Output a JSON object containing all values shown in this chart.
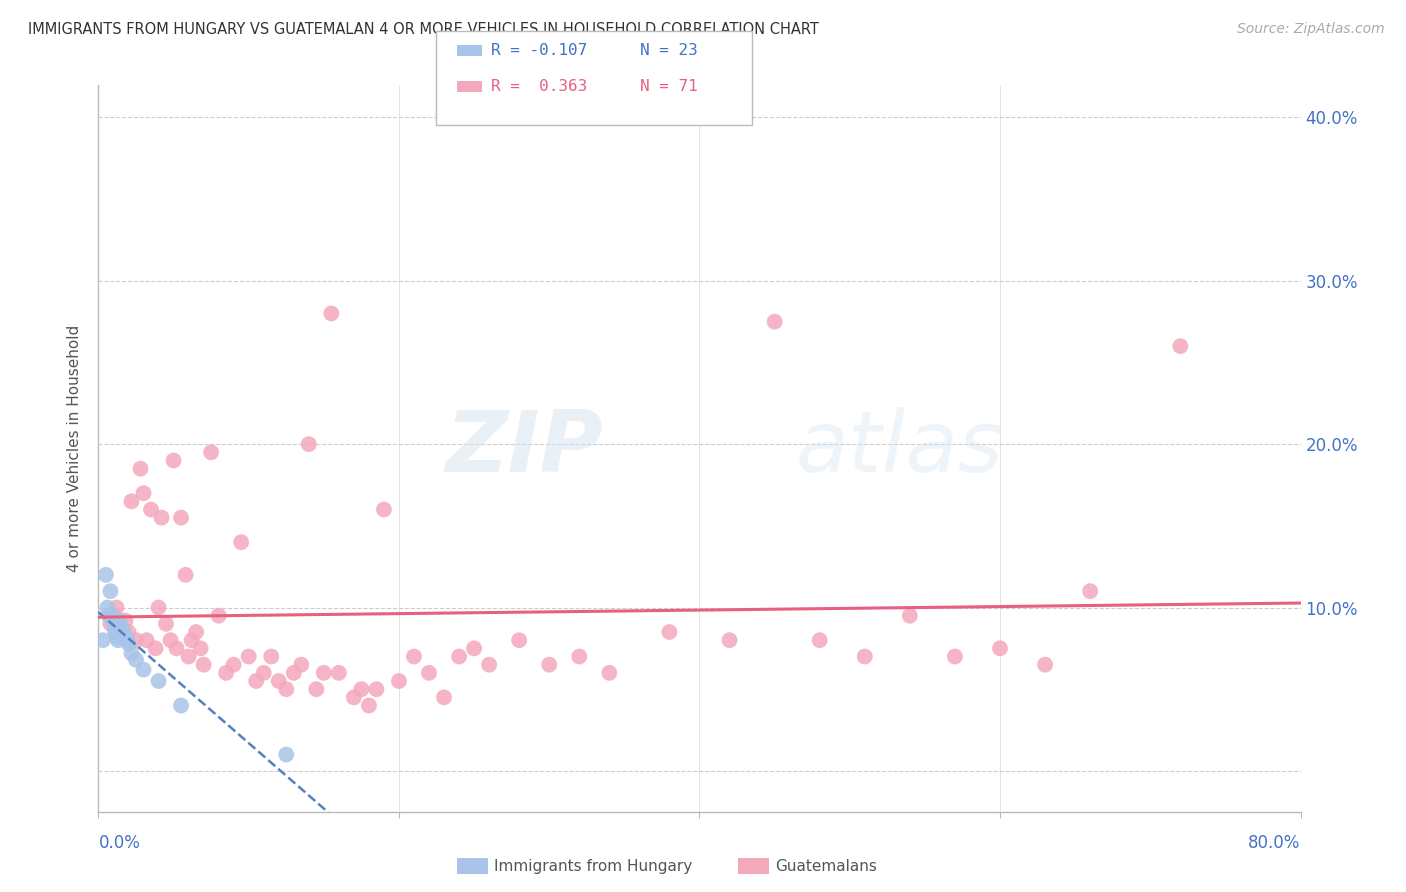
{
  "title": "IMMIGRANTS FROM HUNGARY VS GUATEMALAN 4 OR MORE VEHICLES IN HOUSEHOLD CORRELATION CHART",
  "source": "Source: ZipAtlas.com",
  "ylabel": "4 or more Vehicles in Household",
  "blue_color": "#a8c4e8",
  "pink_color": "#f4a8bc",
  "blue_line_color": "#5580c0",
  "pink_line_color": "#e86080",
  "watermark_zip": "ZIP",
  "watermark_atlas": "atlas",
  "xlim": [
    0.0,
    0.8
  ],
  "ylim": [
    -0.025,
    0.42
  ],
  "yticks": [
    0.0,
    0.1,
    0.2,
    0.3,
    0.4
  ],
  "xtick_positions": [
    0.0,
    0.2,
    0.4,
    0.6,
    0.8
  ],
  "legend_r1": "R = -0.107",
  "legend_n1": "N = 23",
  "legend_r2": "R =  0.363",
  "legend_n2": "N = 71",
  "blue_scatter_x": [
    0.003,
    0.005,
    0.006,
    0.007,
    0.008,
    0.009,
    0.01,
    0.011,
    0.012,
    0.013,
    0.014,
    0.015,
    0.016,
    0.017,
    0.018,
    0.019,
    0.02,
    0.022,
    0.025,
    0.03,
    0.04,
    0.055,
    0.125
  ],
  "blue_scatter_y": [
    0.08,
    0.12,
    0.1,
    0.095,
    0.11,
    0.095,
    0.09,
    0.085,
    0.082,
    0.08,
    0.092,
    0.088,
    0.086,
    0.084,
    0.082,
    0.08,
    0.078,
    0.072,
    0.068,
    0.062,
    0.055,
    0.04,
    0.01
  ],
  "pink_scatter_x": [
    0.008,
    0.01,
    0.012,
    0.015,
    0.018,
    0.02,
    0.022,
    0.025,
    0.028,
    0.03,
    0.032,
    0.035,
    0.038,
    0.04,
    0.042,
    0.045,
    0.048,
    0.05,
    0.052,
    0.055,
    0.058,
    0.06,
    0.062,
    0.065,
    0.068,
    0.07,
    0.075,
    0.08,
    0.085,
    0.09,
    0.095,
    0.1,
    0.105,
    0.11,
    0.115,
    0.12,
    0.125,
    0.13,
    0.135,
    0.14,
    0.145,
    0.15,
    0.155,
    0.16,
    0.17,
    0.175,
    0.18,
    0.185,
    0.19,
    0.2,
    0.21,
    0.22,
    0.23,
    0.24,
    0.25,
    0.26,
    0.28,
    0.3,
    0.32,
    0.34,
    0.38,
    0.42,
    0.45,
    0.48,
    0.51,
    0.54,
    0.57,
    0.6,
    0.63,
    0.66,
    0.72
  ],
  "pink_scatter_y": [
    0.09,
    0.095,
    0.1,
    0.088,
    0.092,
    0.085,
    0.165,
    0.08,
    0.185,
    0.17,
    0.08,
    0.16,
    0.075,
    0.1,
    0.155,
    0.09,
    0.08,
    0.19,
    0.075,
    0.155,
    0.12,
    0.07,
    0.08,
    0.085,
    0.075,
    0.065,
    0.195,
    0.095,
    0.06,
    0.065,
    0.14,
    0.07,
    0.055,
    0.06,
    0.07,
    0.055,
    0.05,
    0.06,
    0.065,
    0.2,
    0.05,
    0.06,
    0.28,
    0.06,
    0.045,
    0.05,
    0.04,
    0.05,
    0.16,
    0.055,
    0.07,
    0.06,
    0.045,
    0.07,
    0.075,
    0.065,
    0.08,
    0.065,
    0.07,
    0.06,
    0.085,
    0.08,
    0.275,
    0.08,
    0.07,
    0.095,
    0.07,
    0.075,
    0.065,
    0.11,
    0.26
  ]
}
